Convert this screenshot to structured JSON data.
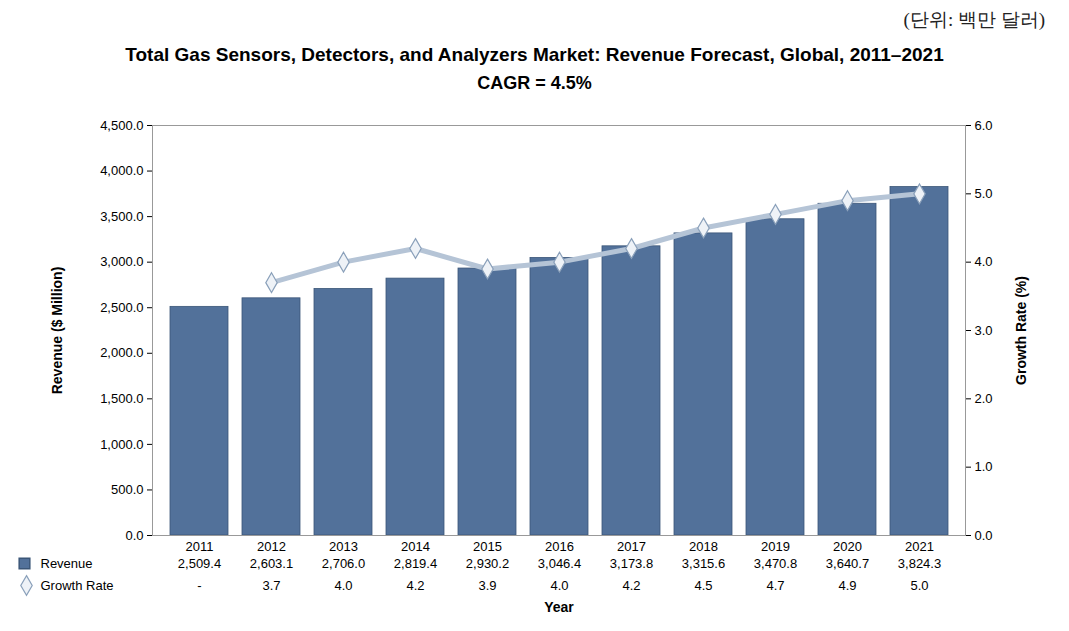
{
  "chart_data": {
    "type": "bar",
    "title": "Total Gas Sensors, Detectors, and Analyzers Market: Revenue Forecast, Global, 2011–2021",
    "subtitle": "CAGR = 4.5%",
    "annotations": [
      "(단위: 백만 달러)"
    ],
    "x_label": "Year",
    "y_label": "Revenue ($ Million)",
    "y2_label": "Growth Rate (%)",
    "categories": [
      "2011",
      "2012",
      "2013",
      "2014",
      "2015",
      "2016",
      "2017",
      "2018",
      "2019",
      "2020",
      "2021"
    ],
    "series": [
      {
        "name": "Revenue",
        "type": "bar",
        "color": "#52719a",
        "values": [
          2509.4,
          2603.1,
          2706.0,
          2819.4,
          2930.2,
          3046.4,
          3173.8,
          3315.6,
          3470.8,
          3640.7,
          3824.3
        ],
        "value_labels": [
          "2,509.4",
          "2,603.1",
          "2,706.0",
          "2,819.4",
          "2,930.2",
          "3,046.4",
          "3,173.8",
          "3,315.6",
          "3,470.8",
          "3,640.7",
          "3,824.3"
        ]
      },
      {
        "name": "Growth Rate",
        "type": "line",
        "axis": "y2",
        "color": "#b5c4d6",
        "marker": "diamond",
        "values": [
          null,
          3.7,
          4.0,
          4.2,
          3.9,
          4.0,
          4.2,
          4.5,
          4.7,
          4.9,
          5.0
        ],
        "value_labels": [
          "-",
          "3.7",
          "4.0",
          "4.2",
          "3.9",
          "4.0",
          "4.2",
          "4.5",
          "4.7",
          "4.9",
          "5.0"
        ]
      }
    ],
    "ylim": [
      0,
      4500
    ],
    "yticks": [
      {
        "value": 0,
        "label": "0.0"
      },
      {
        "value": 500,
        "label": "500.0"
      },
      {
        "value": 1000,
        "label": "1,000.0"
      },
      {
        "value": 1500,
        "label": "1,500.0"
      },
      {
        "value": 2000,
        "label": "2,000.0"
      },
      {
        "value": 2500,
        "label": "2,500.0"
      },
      {
        "value": 3000,
        "label": "3,000.0"
      },
      {
        "value": 3500,
        "label": "3,500.0"
      },
      {
        "value": 4000,
        "label": "4,000.0"
      },
      {
        "value": 4500,
        "label": "4,500.0"
      }
    ],
    "y2lim": [
      0,
      6
    ],
    "y2ticks": [
      {
        "value": 0,
        "label": "0.0"
      },
      {
        "value": 1,
        "label": "1.0"
      },
      {
        "value": 2,
        "label": "2.0"
      },
      {
        "value": 3,
        "label": "3.0"
      },
      {
        "value": 4,
        "label": "4.0"
      },
      {
        "value": 5,
        "label": "5.0"
      },
      {
        "value": 6,
        "label": "6.0"
      }
    ],
    "grid": false,
    "data_labels": true
  }
}
